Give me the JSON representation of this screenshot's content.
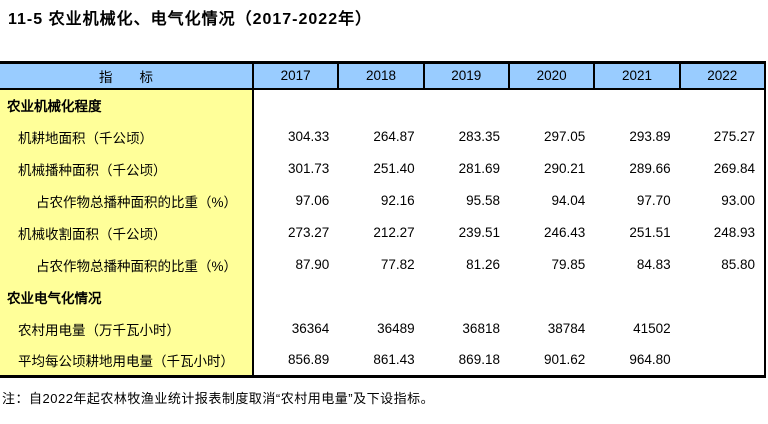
{
  "title": "11-5 农业机械化、电气化情况（2017-2022年）",
  "table": {
    "indicator_header": "指　　标",
    "years": [
      "2017",
      "2018",
      "2019",
      "2020",
      "2021",
      "2022"
    ],
    "rows": [
      {
        "label": "农业机械化程度",
        "type": "section",
        "values": [
          "",
          "",
          "",
          "",
          "",
          ""
        ]
      },
      {
        "label": "机耕地面积（千公顷）",
        "type": "item",
        "values": [
          "304.33",
          "264.87",
          "283.35",
          "297.05",
          "293.89",
          "275.27"
        ]
      },
      {
        "label": "机械播种面积（千公顷）",
        "type": "item",
        "values": [
          "301.73",
          "251.40",
          "281.69",
          "290.21",
          "289.66",
          "269.84"
        ]
      },
      {
        "label": "占农作物总播种面积的比重（%）",
        "type": "subitem",
        "values": [
          "97.06",
          "92.16",
          "95.58",
          "94.04",
          "97.70",
          "93.00"
        ]
      },
      {
        "label": "机械收割面积（千公顷）",
        "type": "item",
        "values": [
          "273.27",
          "212.27",
          "239.51",
          "246.43",
          "251.51",
          "248.93"
        ]
      },
      {
        "label": "占农作物总播种面积的比重（%）",
        "type": "subitem",
        "values": [
          "87.90",
          "77.82",
          "81.26",
          "79.85",
          "84.83",
          "85.80"
        ]
      },
      {
        "label": "农业电气化情况",
        "type": "section",
        "values": [
          "",
          "",
          "",
          "",
          "",
          ""
        ]
      },
      {
        "label": "农村用电量（万千瓦小时）",
        "type": "item",
        "values": [
          "36364",
          "36489",
          "36818",
          "38784",
          "41502",
          ""
        ]
      },
      {
        "label": "平均每公顷耕地用电量（千瓦小时）",
        "type": "item",
        "values": [
          "856.89",
          "861.43",
          "869.18",
          "901.62",
          "964.80",
          ""
        ]
      }
    ]
  },
  "note": "注：自2022年起农林牧渔业统计报表制度取消“农村用电量”及下设指标。",
  "colors": {
    "header_bg": "#99CCFF",
    "indicator_bg": "#FFFF99",
    "border": "#000000",
    "text": "#000000"
  }
}
